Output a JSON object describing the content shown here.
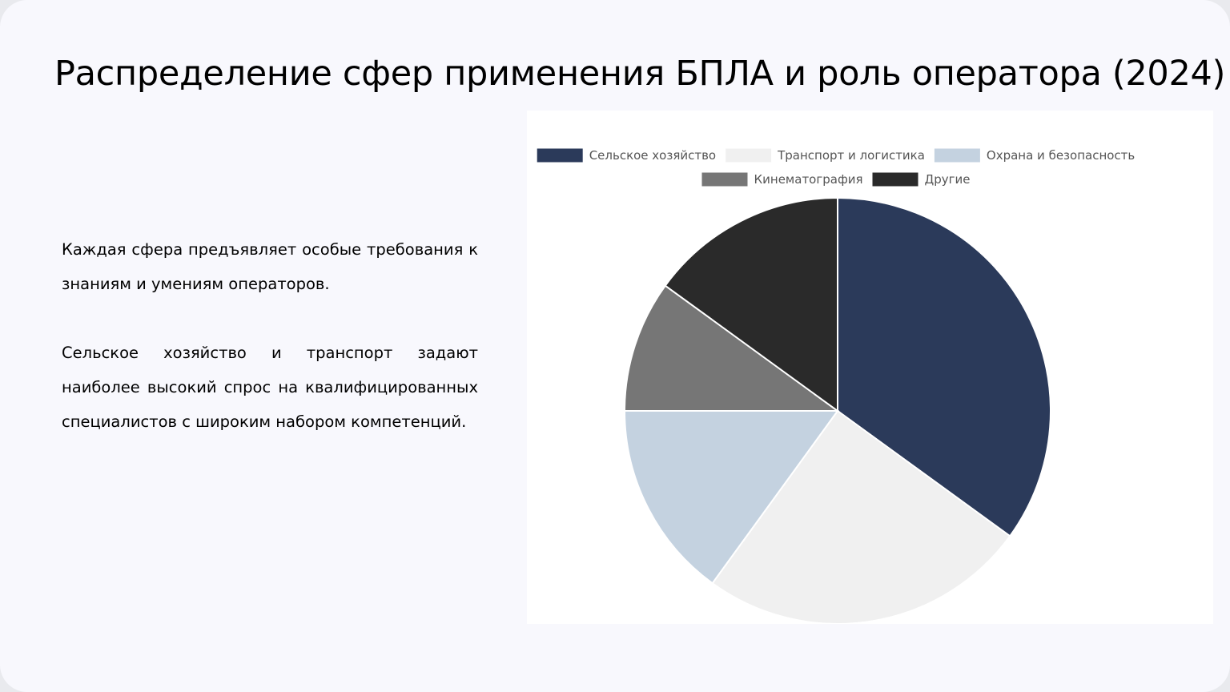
{
  "slide": {
    "title": "Распределение сфер применения БПЛА и роль оператора (2024)",
    "paragraphs": [
      "Каждая сфера предъявляет особые требования к знаниям и умениям операторов.",
      "Сельское хозяйство и транспорт задают наиболее высокий спрос на квалифицированных специалистов с широким набором компетенций."
    ]
  },
  "chart_data": {
    "type": "pie",
    "title": "",
    "categories": [
      "Сельское хозяйство",
      "Транспорт и логистика",
      "Охрана и безопасность",
      "Кинематография",
      "Другие"
    ],
    "values": [
      35,
      25,
      15,
      10,
      15
    ],
    "colors": [
      "#2b3a5a",
      "#f0f0f0",
      "#c4d2e0",
      "#767676",
      "#2a2a2a"
    ],
    "legend": {
      "position": "top"
    },
    "start_angle": "top",
    "direction": "clockwise"
  }
}
